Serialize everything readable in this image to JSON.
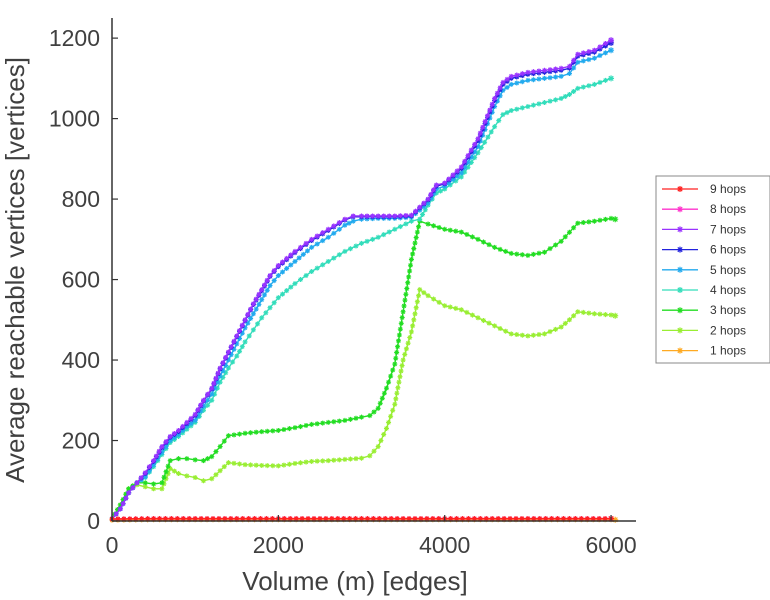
{
  "chart_data": {
    "type": "line",
    "xlabel": "Volume (m) [edges]",
    "ylabel": "Average reachable vertices [vertices]",
    "xlim": [
      0,
      6300
    ],
    "ylim": [
      0,
      1250
    ],
    "xticks": [
      0,
      2000,
      4000,
      6000
    ],
    "yticks": [
      0,
      200,
      400,
      600,
      800,
      1000,
      1200
    ],
    "grid": false,
    "legend_position": "right",
    "series": [
      {
        "name": "9 hops",
        "color": "#ff2020",
        "points": [
          [
            0,
            5
          ],
          [
            500,
            6
          ],
          [
            1000,
            6
          ],
          [
            1500,
            6
          ],
          [
            2000,
            6
          ],
          [
            2500,
            6
          ],
          [
            3000,
            6
          ],
          [
            3500,
            6
          ],
          [
            4000,
            6
          ],
          [
            4500,
            6
          ],
          [
            5000,
            6
          ],
          [
            5500,
            6
          ],
          [
            6000,
            6
          ]
        ]
      },
      {
        "name": "8 hops",
        "color": "#ff33cc",
        "points": [
          [
            0,
            5
          ],
          [
            500,
            6
          ],
          [
            1000,
            6
          ],
          [
            1500,
            6
          ],
          [
            2000,
            6
          ],
          [
            2500,
            6
          ],
          [
            3000,
            6
          ],
          [
            3500,
            6
          ],
          [
            4000,
            6
          ],
          [
            4500,
            6
          ],
          [
            5000,
            6
          ],
          [
            5500,
            6
          ],
          [
            6000,
            6
          ]
        ]
      },
      {
        "name": "7 hops",
        "color": "#9933ff",
        "points": [
          [
            0,
            5
          ],
          [
            100,
            30
          ],
          [
            200,
            70
          ],
          [
            300,
            95
          ],
          [
            400,
            120
          ],
          [
            500,
            150
          ],
          [
            600,
            185
          ],
          [
            700,
            210
          ],
          [
            800,
            225
          ],
          [
            900,
            245
          ],
          [
            1000,
            265
          ],
          [
            1100,
            300
          ],
          [
            1200,
            330
          ],
          [
            1300,
            380
          ],
          [
            1400,
            420
          ],
          [
            1500,
            460
          ],
          [
            1600,
            500
          ],
          [
            1700,
            540
          ],
          [
            1800,
            575
          ],
          [
            1900,
            610
          ],
          [
            2000,
            635
          ],
          [
            2200,
            670
          ],
          [
            2400,
            700
          ],
          [
            2600,
            725
          ],
          [
            2800,
            750
          ],
          [
            2900,
            758
          ],
          [
            3000,
            758
          ],
          [
            3200,
            758
          ],
          [
            3400,
            758
          ],
          [
            3600,
            760
          ],
          [
            3800,
            800
          ],
          [
            3900,
            835
          ],
          [
            4000,
            840
          ],
          [
            4200,
            880
          ],
          [
            4400,
            950
          ],
          [
            4600,
            1050
          ],
          [
            4700,
            1090
          ],
          [
            4800,
            1105
          ],
          [
            5000,
            1115
          ],
          [
            5200,
            1120
          ],
          [
            5400,
            1125
          ],
          [
            5500,
            1130
          ],
          [
            5600,
            1160
          ],
          [
            5800,
            1170
          ],
          [
            6000,
            1195
          ]
        ]
      },
      {
        "name": "6 hops",
        "color": "#2222dd",
        "points": [
          [
            0,
            5
          ],
          [
            100,
            30
          ],
          [
            200,
            70
          ],
          [
            300,
            95
          ],
          [
            400,
            118
          ],
          [
            500,
            148
          ],
          [
            600,
            182
          ],
          [
            700,
            208
          ],
          [
            800,
            222
          ],
          [
            900,
            242
          ],
          [
            1000,
            262
          ],
          [
            1100,
            298
          ],
          [
            1200,
            328
          ],
          [
            1300,
            378
          ],
          [
            1400,
            418
          ],
          [
            1500,
            458
          ],
          [
            1600,
            498
          ],
          [
            1700,
            538
          ],
          [
            1800,
            572
          ],
          [
            1900,
            608
          ],
          [
            2000,
            632
          ],
          [
            2200,
            667
          ],
          [
            2400,
            697
          ],
          [
            2600,
            722
          ],
          [
            2800,
            748
          ],
          [
            2900,
            756
          ],
          [
            3000,
            756
          ],
          [
            3200,
            756
          ],
          [
            3400,
            756
          ],
          [
            3600,
            758
          ],
          [
            3800,
            798
          ],
          [
            3900,
            832
          ],
          [
            4000,
            838
          ],
          [
            4200,
            876
          ],
          [
            4400,
            945
          ],
          [
            4600,
            1045
          ],
          [
            4700,
            1085
          ],
          [
            4800,
            1100
          ],
          [
            5000,
            1110
          ],
          [
            5200,
            1115
          ],
          [
            5400,
            1120
          ],
          [
            5500,
            1125
          ],
          [
            5600,
            1155
          ],
          [
            5800,
            1165
          ],
          [
            6000,
            1188
          ]
        ]
      },
      {
        "name": "5 hops",
        "color": "#22aaee",
        "points": [
          [
            0,
            5
          ],
          [
            100,
            30
          ],
          [
            200,
            70
          ],
          [
            300,
            95
          ],
          [
            400,
            110
          ],
          [
            500,
            140
          ],
          [
            600,
            170
          ],
          [
            700,
            200
          ],
          [
            800,
            215
          ],
          [
            900,
            235
          ],
          [
            1000,
            250
          ],
          [
            1100,
            285
          ],
          [
            1200,
            315
          ],
          [
            1300,
            360
          ],
          [
            1400,
            400
          ],
          [
            1500,
            440
          ],
          [
            1600,
            480
          ],
          [
            1700,
            515
          ],
          [
            1800,
            550
          ],
          [
            1900,
            585
          ],
          [
            2000,
            610
          ],
          [
            2200,
            645
          ],
          [
            2400,
            680
          ],
          [
            2600,
            705
          ],
          [
            2800,
            735
          ],
          [
            2900,
            745
          ],
          [
            3000,
            750
          ],
          [
            3200,
            752
          ],
          [
            3400,
            752
          ],
          [
            3600,
            755
          ],
          [
            3800,
            790
          ],
          [
            3900,
            825
          ],
          [
            4000,
            832
          ],
          [
            4200,
            865
          ],
          [
            4400,
            930
          ],
          [
            4600,
            1030
          ],
          [
            4700,
            1070
          ],
          [
            4800,
            1085
          ],
          [
            5000,
            1095
          ],
          [
            5200,
            1100
          ],
          [
            5400,
            1105
          ],
          [
            5500,
            1112
          ],
          [
            5600,
            1140
          ],
          [
            5800,
            1150
          ],
          [
            6000,
            1170
          ]
        ]
      },
      {
        "name": "4 hops",
        "color": "#33ddbb",
        "points": [
          [
            0,
            5
          ],
          [
            100,
            30
          ],
          [
            200,
            70
          ],
          [
            300,
            95
          ],
          [
            400,
            108
          ],
          [
            500,
            135
          ],
          [
            600,
            165
          ],
          [
            700,
            195
          ],
          [
            800,
            210
          ],
          [
            900,
            228
          ],
          [
            1000,
            245
          ],
          [
            1100,
            275
          ],
          [
            1200,
            300
          ],
          [
            1300,
            345
          ],
          [
            1400,
            380
          ],
          [
            1500,
            410
          ],
          [
            1600,
            445
          ],
          [
            1700,
            475
          ],
          [
            1800,
            505
          ],
          [
            1900,
            530
          ],
          [
            2000,
            555
          ],
          [
            2200,
            590
          ],
          [
            2400,
            620
          ],
          [
            2600,
            645
          ],
          [
            2800,
            670
          ],
          [
            3000,
            690
          ],
          [
            3200,
            705
          ],
          [
            3400,
            725
          ],
          [
            3600,
            745
          ],
          [
            3700,
            750
          ],
          [
            3800,
            785
          ],
          [
            3900,
            815
          ],
          [
            4000,
            825
          ],
          [
            4200,
            855
          ],
          [
            4400,
            915
          ],
          [
            4600,
            980
          ],
          [
            4700,
            1010
          ],
          [
            4800,
            1020
          ],
          [
            5000,
            1030
          ],
          [
            5200,
            1040
          ],
          [
            5400,
            1050
          ],
          [
            5500,
            1060
          ],
          [
            5600,
            1075
          ],
          [
            5800,
            1085
          ],
          [
            6000,
            1100
          ]
        ]
      },
      {
        "name": "3 hops",
        "color": "#22dd22",
        "points": [
          [
            0,
            5
          ],
          [
            100,
            40
          ],
          [
            200,
            80
          ],
          [
            300,
            95
          ],
          [
            400,
            95
          ],
          [
            500,
            92
          ],
          [
            600,
            95
          ],
          [
            700,
            150
          ],
          [
            800,
            155
          ],
          [
            900,
            155
          ],
          [
            1000,
            152
          ],
          [
            1100,
            150
          ],
          [
            1200,
            160
          ],
          [
            1300,
            185
          ],
          [
            1400,
            212
          ],
          [
            1600,
            218
          ],
          [
            1800,
            222
          ],
          [
            2000,
            225
          ],
          [
            2200,
            232
          ],
          [
            2400,
            240
          ],
          [
            2600,
            245
          ],
          [
            2800,
            250
          ],
          [
            3000,
            258
          ],
          [
            3100,
            262
          ],
          [
            3200,
            280
          ],
          [
            3300,
            330
          ],
          [
            3400,
            390
          ],
          [
            3500,
            520
          ],
          [
            3600,
            650
          ],
          [
            3700,
            745
          ],
          [
            3800,
            738
          ],
          [
            4000,
            725
          ],
          [
            4200,
            718
          ],
          [
            4400,
            700
          ],
          [
            4600,
            680
          ],
          [
            4800,
            665
          ],
          [
            5000,
            660
          ],
          [
            5200,
            668
          ],
          [
            5400,
            695
          ],
          [
            5600,
            740
          ],
          [
            5800,
            745
          ],
          [
            6000,
            752
          ],
          [
            6050,
            750
          ]
        ]
      },
      {
        "name": "2 hops",
        "color": "#99ee33",
        "points": [
          [
            0,
            5
          ],
          [
            100,
            40
          ],
          [
            200,
            80
          ],
          [
            300,
            90
          ],
          [
            400,
            85
          ],
          [
            500,
            80
          ],
          [
            600,
            80
          ],
          [
            700,
            130
          ],
          [
            800,
            118
          ],
          [
            900,
            112
          ],
          [
            1000,
            108
          ],
          [
            1100,
            100
          ],
          [
            1200,
            105
          ],
          [
            1300,
            125
          ],
          [
            1400,
            145
          ],
          [
            1600,
            140
          ],
          [
            1800,
            138
          ],
          [
            2000,
            137
          ],
          [
            2200,
            143
          ],
          [
            2400,
            148
          ],
          [
            2600,
            150
          ],
          [
            2800,
            153
          ],
          [
            3000,
            156
          ],
          [
            3100,
            162
          ],
          [
            3200,
            185
          ],
          [
            3300,
            230
          ],
          [
            3400,
            290
          ],
          [
            3500,
            400
          ],
          [
            3600,
            470
          ],
          [
            3700,
            575
          ],
          [
            3800,
            560
          ],
          [
            4000,
            535
          ],
          [
            4200,
            525
          ],
          [
            4400,
            505
          ],
          [
            4600,
            485
          ],
          [
            4800,
            465
          ],
          [
            5000,
            460
          ],
          [
            5200,
            465
          ],
          [
            5400,
            482
          ],
          [
            5500,
            500
          ],
          [
            5600,
            520
          ],
          [
            5800,
            515
          ],
          [
            6000,
            512
          ],
          [
            6050,
            510
          ]
        ]
      },
      {
        "name": "1 hops",
        "color": "#ffaa22",
        "points": [
          [
            0,
            2
          ],
          [
            500,
            3
          ],
          [
            1000,
            3
          ],
          [
            1500,
            3
          ],
          [
            2000,
            3
          ],
          [
            2500,
            3
          ],
          [
            3000,
            3
          ],
          [
            3500,
            3
          ],
          [
            4000,
            3
          ],
          [
            4500,
            3
          ],
          [
            5000,
            3
          ],
          [
            5500,
            3
          ],
          [
            6000,
            3
          ],
          [
            6050,
            3
          ]
        ]
      }
    ]
  }
}
